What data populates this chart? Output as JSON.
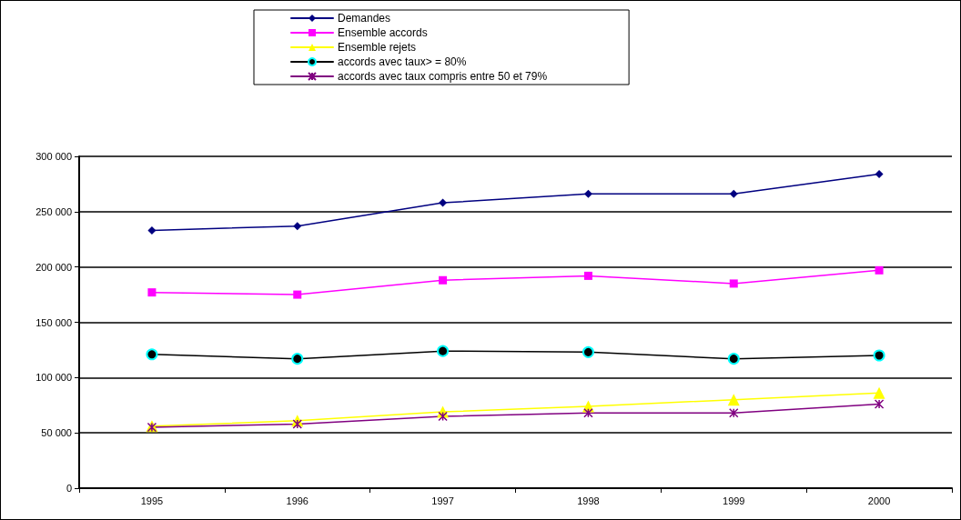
{
  "chart_data": {
    "type": "line",
    "categories": [
      "1995",
      "1996",
      "1997",
      "1998",
      "1999",
      "2000"
    ],
    "series": [
      {
        "name": "Demandes",
        "color": "#000080",
        "marker": "diamond",
        "values": [
          233000,
          237000,
          258000,
          266000,
          266000,
          284000
        ]
      },
      {
        "name": "Ensemble accords",
        "color": "#ff00ff",
        "marker": "square",
        "values": [
          177000,
          175000,
          188000,
          192000,
          185000,
          197000
        ]
      },
      {
        "name": "Ensemble rejets",
        "color": "#ffff00",
        "marker": "triangle",
        "values": [
          56000,
          61000,
          69000,
          74000,
          80000,
          86000
        ]
      },
      {
        "name": "accords avec taux> = 80%",
        "color": "#000000",
        "marker": "circle",
        "values": [
          121000,
          117000,
          124000,
          123000,
          117000,
          120000
        ]
      },
      {
        "name": "accords avec taux compris entre 50 et 79%",
        "color": "#800080",
        "marker": "cross",
        "values": [
          55000,
          58000,
          65000,
          68000,
          68000,
          76000
        ]
      }
    ],
    "ylim": [
      0,
      300000
    ],
    "yticks": [
      0,
      50000,
      100000,
      150000,
      200000,
      250000,
      300000
    ],
    "grid": "y",
    "legend": "top",
    "line_style": "solid"
  }
}
